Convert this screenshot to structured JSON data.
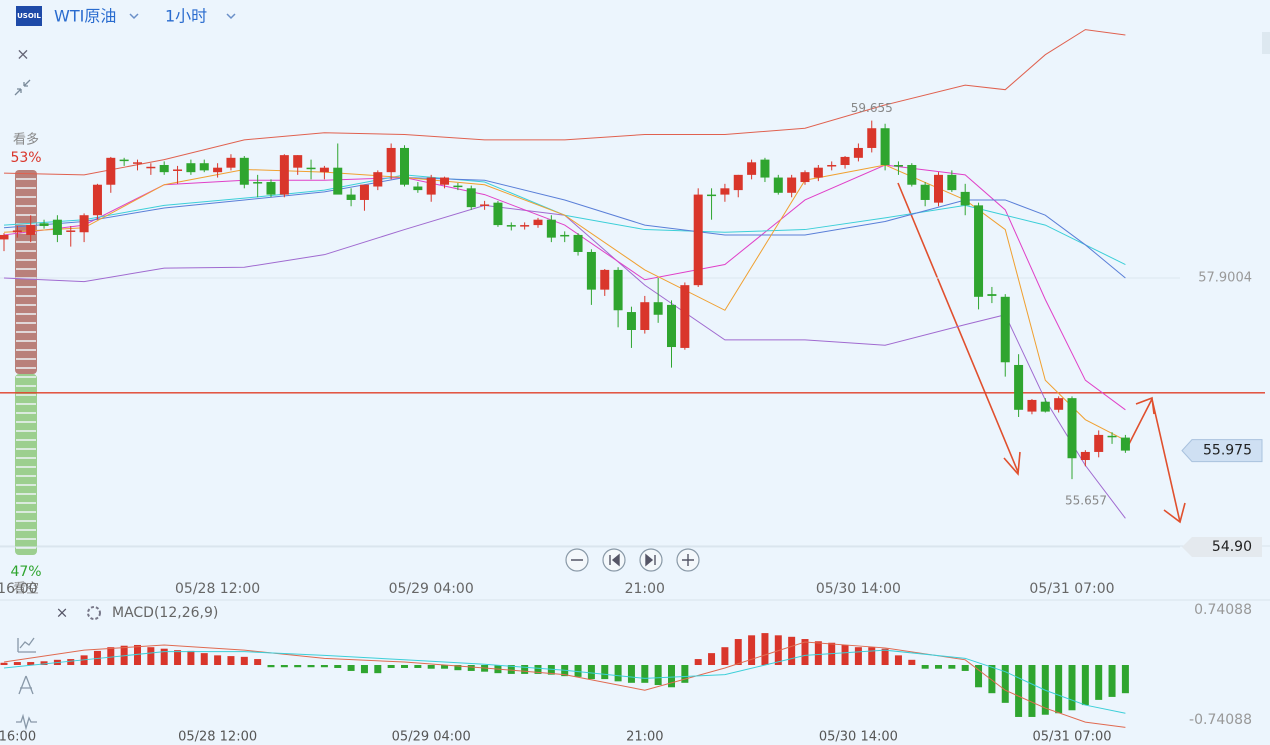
{
  "toolbar": {
    "logo": "USOIL",
    "symbol": "WTI原油",
    "interval": "1小时"
  },
  "sentiment": {
    "bull_label": "看多",
    "bull_pct": "53%",
    "bear_pct": "47%",
    "bear_label": "看空"
  },
  "chart_data": {
    "type": "candlestick",
    "up_color": "#d9362b",
    "down_color": "#2fa52f",
    "categories": [
      null,
      "16:00",
      null,
      null,
      null,
      null,
      null,
      null,
      null,
      null,
      null,
      null,
      null,
      null,
      null,
      null,
      "05/28 12:00",
      null,
      null,
      null,
      null,
      null,
      null,
      null,
      null,
      null,
      null,
      null,
      null,
      null,
      null,
      null,
      "05/29 04:00",
      null,
      null,
      null,
      null,
      null,
      null,
      null,
      null,
      null,
      null,
      null,
      null,
      null,
      null,
      null,
      "21:00",
      null,
      null,
      null,
      null,
      null,
      null,
      null,
      null,
      null,
      null,
      null,
      null,
      null,
      null,
      null,
      "05/30 14:00",
      null,
      null,
      null,
      null,
      null,
      null,
      null,
      null,
      null,
      null,
      null,
      null,
      null,
      null,
      null,
      "05/31 07:00",
      null,
      null,
      null,
      null
    ],
    "open": [
      58.33,
      58.41,
      58.38,
      58.51,
      58.55,
      58.42,
      58.41,
      58.6,
      58.94,
      59.22,
      59.18,
      59.13,
      59.16,
      59.1,
      59.18,
      59.18,
      59.08,
      59.13,
      59.24,
      58.97,
      58.97,
      58.83,
      59.13,
      59.13,
      59.08,
      59.13,
      58.83,
      58.77,
      58.92,
      59.08,
      59.35,
      58.92,
      58.83,
      58.94,
      58.93,
      58.9,
      58.71,
      58.74,
      58.49,
      58.48,
      58.49,
      58.55,
      58.38,
      58.38,
      58.19,
      57.77,
      57.99,
      57.52,
      57.32,
      57.63,
      57.6,
      57.12,
      57.82,
      58.83,
      58.83,
      58.88,
      59.05,
      59.22,
      59.02,
      58.85,
      58.97,
      59.02,
      59.15,
      59.16,
      59.24,
      59.35,
      59.57,
      59.16,
      59.16,
      58.94,
      58.74,
      59.05,
      58.86,
      58.71,
      57.72,
      57.69,
      56.93,
      56.41,
      56.52,
      56.43,
      56.56,
      55.87,
      55.96,
      56.14,
      56.12
    ],
    "high": [
      58.4,
      58.48,
      58.6,
      58.55,
      58.6,
      58.48,
      58.62,
      58.95,
      59.25,
      59.24,
      59.22,
      59.18,
      59.2,
      59.15,
      59.22,
      59.22,
      59.18,
      59.28,
      59.26,
      59.05,
      59.0,
      59.28,
      59.27,
      59.22,
      59.15,
      59.4,
      58.9,
      58.94,
      59.1,
      59.4,
      59.38,
      58.97,
      59.05,
      59.03,
      58.96,
      58.93,
      58.76,
      58.76,
      58.52,
      58.52,
      58.57,
      58.6,
      58.42,
      58.4,
      58.22,
      58.0,
      58.02,
      57.58,
      57.7,
      57.9,
      57.65,
      57.85,
      58.9,
      58.9,
      58.95,
      59.05,
      59.22,
      59.24,
      59.05,
      59.05,
      59.1,
      59.16,
      59.2,
      59.26,
      59.4,
      59.655,
      59.62,
      59.2,
      59.18,
      58.97,
      59.08,
      59.1,
      58.95,
      58.74,
      57.8,
      57.72,
      57.05,
      56.55,
      56.56,
      56.58,
      56.58,
      55.98,
      56.2,
      56.18,
      56.15
    ],
    "low": [
      58.2,
      58.35,
      58.3,
      58.45,
      58.3,
      58.25,
      58.3,
      58.55,
      58.85,
      59.15,
      59.1,
      59.05,
      59.05,
      58.95,
      59.05,
      59.08,
      59.02,
      59.1,
      58.9,
      58.8,
      58.8,
      58.8,
      59.05,
      59.0,
      59.0,
      58.85,
      58.7,
      58.65,
      58.88,
      59.0,
      58.92,
      58.85,
      58.75,
      58.9,
      58.88,
      58.66,
      58.66,
      58.47,
      58.43,
      58.44,
      58.46,
      58.3,
      58.3,
      58.15,
      57.6,
      57.7,
      57.35,
      57.12,
      57.28,
      57.4,
      56.9,
      57.1,
      57.8,
      58.55,
      58.75,
      58.8,
      59.0,
      58.97,
      58.83,
      58.8,
      58.94,
      58.98,
      59.1,
      59.12,
      59.2,
      59.3,
      59.1,
      59.05,
      58.92,
      58.7,
      58.7,
      58.86,
      58.6,
      57.55,
      57.62,
      56.8,
      56.35,
      56.38,
      56.4,
      56.4,
      55.657,
      55.8,
      55.9,
      56.05,
      55.95
    ],
    "close": [
      58.38,
      58.43,
      58.49,
      58.48,
      58.38,
      58.43,
      58.6,
      58.94,
      59.24,
      59.21,
      59.19,
      59.14,
      59.08,
      59.11,
      59.08,
      59.1,
      59.13,
      59.24,
      58.94,
      58.96,
      58.83,
      59.27,
      59.27,
      59.12,
      59.13,
      58.83,
      58.77,
      58.94,
      59.08,
      59.35,
      58.94,
      58.88,
      59.02,
      59.02,
      58.92,
      58.69,
      58.72,
      58.49,
      58.48,
      58.49,
      58.55,
      58.35,
      58.37,
      58.19,
      57.77,
      57.99,
      57.54,
      57.32,
      57.63,
      57.49,
      57.13,
      57.82,
      58.83,
      58.82,
      58.9,
      59.05,
      59.19,
      59.02,
      58.85,
      59.02,
      59.08,
      59.13,
      59.16,
      59.25,
      59.35,
      59.57,
      59.16,
      59.15,
      58.94,
      58.77,
      59.05,
      58.88,
      58.71,
      57.69,
      57.7,
      56.96,
      56.43,
      56.54,
      56.41,
      56.56,
      55.89,
      55.96,
      56.15,
      56.13,
      55.975
    ],
    "indicator_x": [
      0,
      6,
      12,
      18,
      24,
      30,
      36,
      42,
      48,
      54,
      60,
      66,
      72,
      75,
      78,
      81,
      84
    ],
    "indicators": [
      {
        "color": "#e0614f",
        "values": [
          59.07,
          59.05,
          59.22,
          59.44,
          59.52,
          59.5,
          59.44,
          59.44,
          59.5,
          59.5,
          59.57,
          59.83,
          60.05,
          60.0,
          60.39,
          60.67,
          60.61
        ]
      },
      {
        "color": "#a06ad0",
        "values": [
          57.9,
          57.86,
          58.01,
          58.02,
          58.16,
          58.44,
          58.71,
          58.6,
          57.82,
          57.21,
          57.21,
          57.15,
          57.38,
          57.49,
          56.54,
          55.81,
          55.22
        ]
      },
      {
        "color": "#e040c8",
        "values": [
          58.38,
          58.49,
          58.94,
          58.99,
          58.99,
          59.02,
          58.83,
          58.49,
          57.88,
          58.05,
          58.77,
          59.16,
          59.05,
          58.66,
          57.66,
          56.76,
          56.43
        ]
      },
      {
        "color": "#3ccfd8",
        "values": [
          58.49,
          58.55,
          58.71,
          58.79,
          58.88,
          59.05,
          58.97,
          58.6,
          58.44,
          58.41,
          58.44,
          58.57,
          58.71,
          58.6,
          58.49,
          58.27,
          58.05
        ]
      },
      {
        "color": "#5a7fd8",
        "values": [
          58.46,
          58.53,
          58.68,
          58.77,
          58.86,
          59.02,
          58.99,
          58.77,
          58.49,
          58.38,
          58.38,
          58.53,
          58.77,
          58.77,
          58.6,
          58.27,
          57.9
        ]
      },
      {
        "color": "#f0a030",
        "values": [
          58.41,
          58.46,
          58.94,
          59.11,
          59.08,
          59.02,
          58.94,
          58.6,
          57.99,
          57.54,
          58.99,
          59.16,
          58.77,
          58.44,
          56.76,
          56.32,
          56.09
        ]
      }
    ],
    "ylim": [
      54.9,
      61.0
    ],
    "yticks": [
      57.9004,
      {
        "value": 54.9,
        "label": "54.90"
      }
    ],
    "last_price": 55.975,
    "alert_line": 56.62,
    "alert_color": "#e0402a",
    "macd": {
      "title": "MACD(12,26,9)",
      "histogram": [
        0.03,
        0.04,
        0.04,
        0.05,
        0.07,
        0.08,
        0.13,
        0.19,
        0.24,
        0.26,
        0.27,
        0.24,
        0.22,
        0.2,
        0.19,
        0.16,
        0.13,
        0.12,
        0.11,
        0.08,
        -0.03,
        -0.03,
        -0.03,
        -0.03,
        -0.03,
        -0.04,
        -0.08,
        -0.11,
        -0.11,
        -0.04,
        -0.04,
        -0.04,
        -0.05,
        -0.05,
        -0.07,
        -0.08,
        -0.09,
        -0.11,
        -0.12,
        -0.12,
        -0.12,
        -0.13,
        -0.15,
        -0.16,
        -0.19,
        -0.19,
        -0.22,
        -0.24,
        -0.24,
        -0.27,
        -0.3,
        -0.24,
        0.08,
        0.16,
        0.24,
        0.35,
        0.4,
        0.43,
        0.4,
        0.38,
        0.35,
        0.32,
        0.3,
        0.27,
        0.24,
        0.24,
        0.22,
        0.13,
        0.07,
        -0.05,
        -0.05,
        -0.05,
        -0.08,
        -0.3,
        -0.38,
        -0.51,
        -0.7,
        -0.7,
        -0.67,
        -0.65,
        -0.61,
        -0.54,
        -0.47,
        -0.43,
        -0.38
      ],
      "dif": {
        "color": "#e06a50",
        "values": [
          0.04,
          0.2,
          0.27,
          0.2,
          0.09,
          0.04,
          -0.04,
          -0.13,
          -0.34,
          -0.04,
          0.31,
          0.23,
          0.07,
          -0.34,
          -0.58,
          -0.77,
          -0.84
        ]
      },
      "dea": {
        "color": "#3ccfd8",
        "values": [
          -0.04,
          0.07,
          0.18,
          0.18,
          0.13,
          0.07,
          0.01,
          -0.07,
          -0.18,
          -0.13,
          0.13,
          0.2,
          0.09,
          -0.09,
          -0.34,
          -0.54,
          -0.65
        ]
      },
      "ylim": [
        -1.078,
        0.876
      ],
      "yticks": [
        0.74088,
        -0.74088
      ]
    }
  }
}
